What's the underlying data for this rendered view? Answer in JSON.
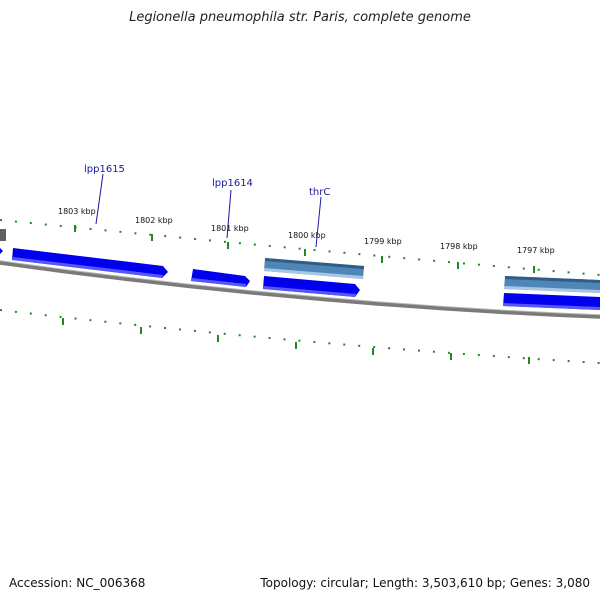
{
  "title": "Legionella pneumophila str. Paris, complete genome",
  "footer": {
    "accession": "Accession: NC_006368",
    "summary": "Topology: circular; Length: 3,503,610 bp; Genes: 3,080"
  },
  "ticks": [
    "1803 kbp",
    "1802 kbp",
    "1801 kbp",
    "1800 kbp",
    "1799 kbp",
    "1798 kbp",
    "1797 kbp"
  ],
  "genes": [
    "lpp1615",
    "lpp1614",
    "thrC"
  ],
  "colors": {
    "backbone": "#7a7a7a",
    "cds": "#0000ee",
    "gene": "#4f86b8",
    "tick": "#1f8a1f",
    "label": "#1a1aa0"
  }
}
